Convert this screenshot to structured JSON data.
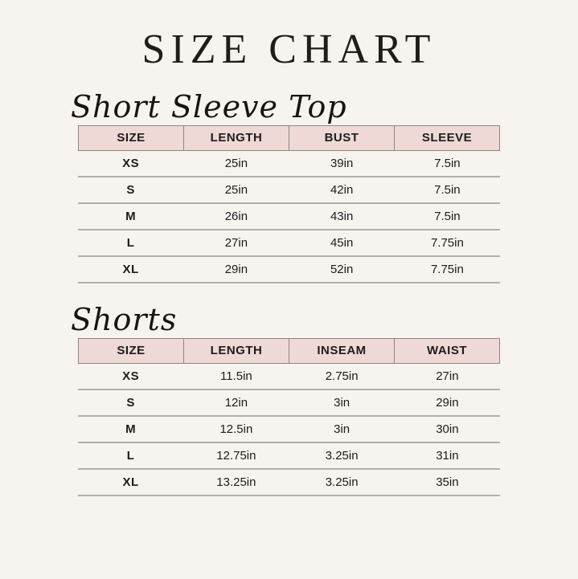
{
  "page": {
    "title": "SIZE CHART",
    "background_color": "#f7f4f0",
    "header_pink": "#eed9d7",
    "header_border_color": "#8e8580",
    "row_divider_color": "#b2b0ad",
    "text_color": "#1c1b19"
  },
  "tables": [
    {
      "heading": "Short Sleeve Top",
      "columns": [
        "SIZE",
        "LENGTH",
        "BUST",
        "SLEEVE"
      ],
      "rows": [
        [
          "XS",
          "25in",
          "39in",
          "7.5in"
        ],
        [
          "S",
          "25in",
          "42in",
          "7.5in"
        ],
        [
          "M",
          "26in",
          "43in",
          "7.5in"
        ],
        [
          "L",
          "27in",
          "45in",
          "7.75in"
        ],
        [
          "XL",
          "29in",
          "52in",
          "7.75in"
        ]
      ]
    },
    {
      "heading": "Shorts",
      "columns": [
        "SIZE",
        "LENGTH",
        "INSEAM",
        "WAIST"
      ],
      "rows": [
        [
          "XS",
          "11.5in",
          "2.75in",
          "27in"
        ],
        [
          "S",
          "12in",
          "3in",
          "29in"
        ],
        [
          "M",
          "12.5in",
          "3in",
          "30in"
        ],
        [
          "L",
          "12.75in",
          "3.25in",
          "31in"
        ],
        [
          "XL",
          "13.25in",
          "3.25in",
          "35in"
        ]
      ]
    }
  ]
}
